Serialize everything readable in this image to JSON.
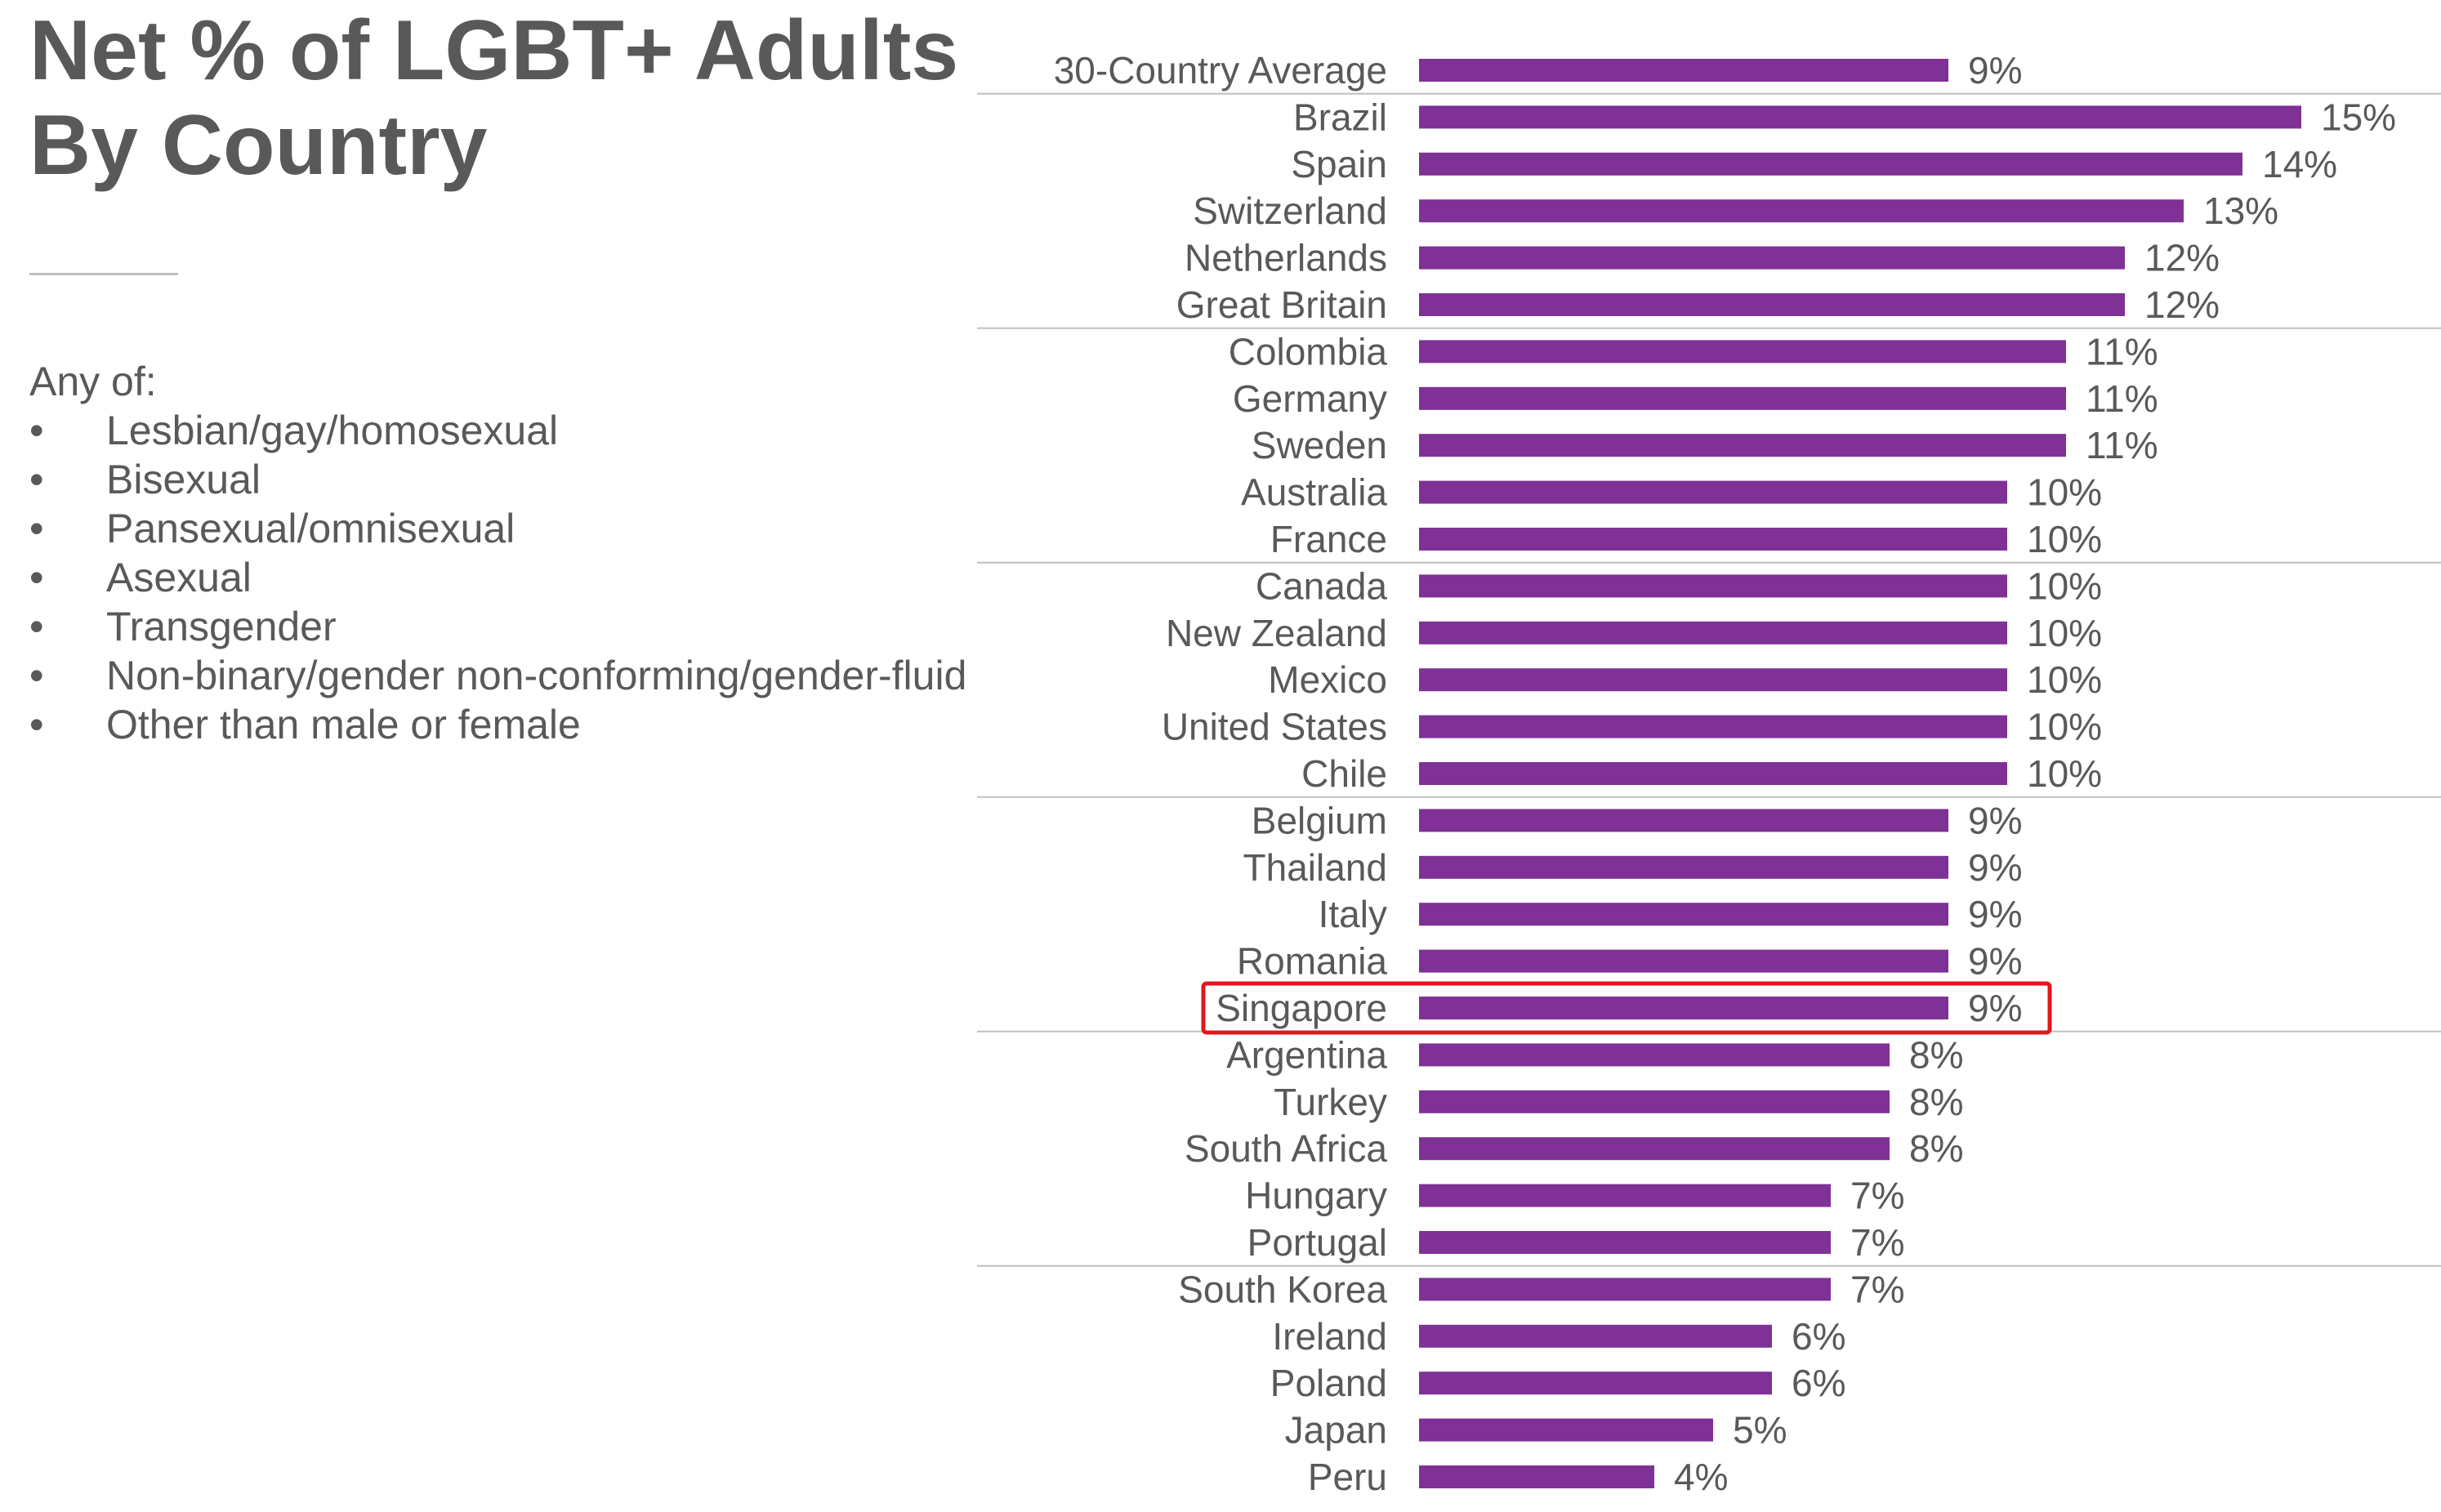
{
  "title": {
    "line1": "Net % of LGBT+ Adults",
    "line2": "By Country"
  },
  "definition": {
    "intro": "Any of:",
    "bullet": "•",
    "items": [
      "Lesbian/gay/homosexual",
      "Bisexual",
      "Pansexual/omnisexual",
      "Asexual",
      "Transgender",
      "Non-binary/gender non-conforming/gender-fluid",
      "Other than male or female"
    ]
  },
  "colors": {
    "bar": "#7f3196",
    "text": "#595959",
    "highlight": "#e3161d",
    "divider": "#bfbfbf"
  },
  "chart_data": {
    "type": "bar",
    "orientation": "horizontal",
    "value_suffix": "%",
    "highlighted_category": "Singapore",
    "categories": [
      "30-Country Average",
      "Brazil",
      "Spain",
      "Switzerland",
      "Netherlands",
      "Great Britain",
      "Colombia",
      "Germany",
      "Sweden",
      "Australia",
      "France",
      "Canada",
      "New Zealand",
      "Mexico",
      "United States",
      "Chile",
      "Belgium",
      "Thailand",
      "Italy",
      "Romania",
      "Singapore",
      "Argentina",
      "Turkey",
      "South Africa",
      "Hungary",
      "Portugal",
      "South Korea",
      "Ireland",
      "Poland",
      "Japan",
      "Peru"
    ],
    "values": [
      9,
      15,
      14,
      13,
      12,
      12,
      11,
      11,
      11,
      10,
      10,
      10,
      10,
      10,
      10,
      10,
      9,
      9,
      9,
      9,
      9,
      8,
      8,
      8,
      7,
      7,
      7,
      6,
      6,
      5,
      4
    ],
    "labels": [
      "9%",
      "15%",
      "14%",
      "13%",
      "12%",
      "12%",
      "11%",
      "11%",
      "11%",
      "10%",
      "10%",
      "10%",
      "10%",
      "10%",
      "10%",
      "10%",
      "9%",
      "9%",
      "9%",
      "9%",
      "9%",
      "8%",
      "8%",
      "8%",
      "7%",
      "7%",
      "7%",
      "6%",
      "6%",
      "5%",
      "4%"
    ],
    "group_dividers_after": [
      "30-Country Average",
      "Great Britain",
      "France",
      "Chile",
      "Singapore",
      "Portugal"
    ]
  }
}
